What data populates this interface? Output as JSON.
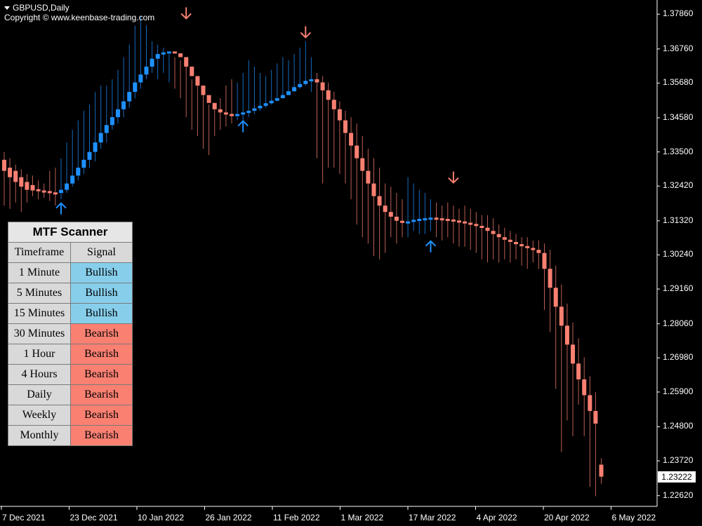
{
  "chart_header": {
    "symbol": "GBPUSD,Daily",
    "copyright": "Copyright © www.keenbase-trading.com"
  },
  "current_price": "1.23222",
  "colors": {
    "bull": "#1e90ff",
    "bear": "#fa8072",
    "bull_cell": "#87ceeb",
    "bear_cell": "#fa8072",
    "background": "#000000"
  },
  "chart_data": {
    "type": "candlestick",
    "title": "GBPUSD,Daily",
    "y_ticks": [
      "1.37860",
      "1.36760",
      "1.35680",
      "1.34580",
      "1.33500",
      "1.32420",
      "1.31320",
      "1.30240",
      "1.29160",
      "1.28060",
      "1.26980",
      "1.25900",
      "1.24800",
      "1.23720",
      "1.22620"
    ],
    "x_ticks": [
      "7 Dec 2021",
      "23 Dec 2021",
      "10 Jan 2022",
      "26 Jan 2022",
      "11 Feb 2022",
      "1 Mar 2022",
      "17 Mar 2022",
      "4 Apr 2022",
      "20 Apr 2022",
      "6 May 2022"
    ],
    "ylim": [
      1.2228,
      1.3822
    ],
    "grid": false,
    "candles": [
      {
        "h": 1.335,
        "l": 1.318,
        "b": 1.3325,
        "e": 1.329
      },
      {
        "h": 1.333,
        "l": 1.317,
        "b": 1.33,
        "e": 1.327
      },
      {
        "h": 1.331,
        "l": 1.319,
        "b": 1.329,
        "e": 1.3255
      },
      {
        "h": 1.3295,
        "l": 1.316,
        "b": 1.327,
        "e": 1.324
      },
      {
        "h": 1.328,
        "l": 1.319,
        "b": 1.3255,
        "e": 1.323
      },
      {
        "h": 1.3275,
        "l": 1.321,
        "b": 1.3245,
        "e": 1.3228
      },
      {
        "h": 1.326,
        "l": 1.32,
        "b": 1.3232,
        "e": 1.3226
      },
      {
        "h": 1.325,
        "l": 1.3205,
        "b": 1.3228,
        "e": 1.3224
      },
      {
        "h": 1.329,
        "l": 1.3195,
        "b": 1.3226,
        "e": 1.3222
      },
      {
        "h": 1.33,
        "l": 1.318,
        "b": 1.3222,
        "e": 1.3218
      },
      {
        "h": 1.333,
        "l": 1.32,
        "b": 1.322,
        "e": 1.323
      },
      {
        "h": 1.338,
        "l": 1.322,
        "b": 1.323,
        "e": 1.325
      },
      {
        "h": 1.342,
        "l": 1.324,
        "b": 1.325,
        "e": 1.3275
      },
      {
        "h": 1.345,
        "l": 1.326,
        "b": 1.3275,
        "e": 1.33
      },
      {
        "h": 1.348,
        "l": 1.328,
        "b": 1.33,
        "e": 1.3325
      },
      {
        "h": 1.35,
        "l": 1.33,
        "b": 1.3325,
        "e": 1.335
      },
      {
        "h": 1.354,
        "l": 1.332,
        "b": 1.335,
        "e": 1.338
      },
      {
        "h": 1.356,
        "l": 1.336,
        "b": 1.338,
        "e": 1.341
      },
      {
        "h": 1.356,
        "l": 1.338,
        "b": 1.341,
        "e": 1.3435
      },
      {
        "h": 1.358,
        "l": 1.342,
        "b": 1.3435,
        "e": 1.346
      },
      {
        "h": 1.361,
        "l": 1.344,
        "b": 1.346,
        "e": 1.3485
      },
      {
        "h": 1.365,
        "l": 1.346,
        "b": 1.3485,
        "e": 1.351
      },
      {
        "h": 1.369,
        "l": 1.349,
        "b": 1.351,
        "e": 1.354
      },
      {
        "h": 1.375,
        "l": 1.352,
        "b": 1.354,
        "e": 1.357
      },
      {
        "h": 1.378,
        "l": 1.355,
        "b": 1.357,
        "e": 1.3595
      },
      {
        "h": 1.375,
        "l": 1.358,
        "b": 1.3595,
        "e": 1.362
      },
      {
        "h": 1.37,
        "l": 1.36,
        "b": 1.362,
        "e": 1.3645
      },
      {
        "h": 1.369,
        "l": 1.358,
        "b": 1.3645,
        "e": 1.366
      },
      {
        "h": 1.368,
        "l": 1.36,
        "b": 1.366,
        "e": 1.3665
      },
      {
        "h": 1.366,
        "l": 1.357,
        "b": 1.3665,
        "e": 1.3668
      },
      {
        "h": 1.365,
        "l": 1.355,
        "b": 1.3668,
        "e": 1.3662
      },
      {
        "h": 1.364,
        "l": 1.352,
        "b": 1.3662,
        "e": 1.365
      },
      {
        "h": 1.362,
        "l": 1.346,
        "b": 1.365,
        "e": 1.362
      },
      {
        "h": 1.358,
        "l": 1.342,
        "b": 1.362,
        "e": 1.359
      },
      {
        "h": 1.356,
        "l": 1.34,
        "b": 1.359,
        "e": 1.356
      },
      {
        "h": 1.353,
        "l": 1.336,
        "b": 1.356,
        "e": 1.353
      },
      {
        "h": 1.35,
        "l": 1.334,
        "b": 1.353,
        "e": 1.3505
      },
      {
        "h": 1.349,
        "l": 1.34,
        "b": 1.3505,
        "e": 1.3485
      },
      {
        "h": 1.352,
        "l": 1.342,
        "b": 1.3485,
        "e": 1.3475
      },
      {
        "h": 1.356,
        "l": 1.343,
        "b": 1.3475,
        "e": 1.347
      },
      {
        "h": 1.358,
        "l": 1.344,
        "b": 1.347,
        "e": 1.3468
      },
      {
        "h": 1.357,
        "l": 1.345,
        "b": 1.3468,
        "e": 1.347
      },
      {
        "h": 1.36,
        "l": 1.344,
        "b": 1.347,
        "e": 1.3475
      },
      {
        "h": 1.364,
        "l": 1.346,
        "b": 1.3475,
        "e": 1.348
      },
      {
        "h": 1.362,
        "l": 1.347,
        "b": 1.348,
        "e": 1.3488
      },
      {
        "h": 1.36,
        "l": 1.348,
        "b": 1.3488,
        "e": 1.3496
      },
      {
        "h": 1.359,
        "l": 1.349,
        "b": 1.3496,
        "e": 1.3504
      },
      {
        "h": 1.361,
        "l": 1.35,
        "b": 1.3504,
        "e": 1.3512
      },
      {
        "h": 1.363,
        "l": 1.351,
        "b": 1.3512,
        "e": 1.352
      },
      {
        "h": 1.365,
        "l": 1.352,
        "b": 1.352,
        "e": 1.353
      },
      {
        "h": 1.364,
        "l": 1.353,
        "b": 1.353,
        "e": 1.3542
      },
      {
        "h": 1.366,
        "l": 1.354,
        "b": 1.3542,
        "e": 1.3555
      },
      {
        "h": 1.368,
        "l": 1.355,
        "b": 1.3555,
        "e": 1.3565
      },
      {
        "h": 1.37,
        "l": 1.356,
        "b": 1.3565,
        "e": 1.3575
      },
      {
        "h": 1.365,
        "l": 1.354,
        "b": 1.3575,
        "e": 1.358
      },
      {
        "h": 1.36,
        "l": 1.333,
        "b": 1.358,
        "e": 1.357
      },
      {
        "h": 1.359,
        "l": 1.325,
        "b": 1.357,
        "e": 1.3545
      },
      {
        "h": 1.357,
        "l": 1.33,
        "b": 1.3545,
        "e": 1.3515
      },
      {
        "h": 1.354,
        "l": 1.33,
        "b": 1.3515,
        "e": 1.3485
      },
      {
        "h": 1.351,
        "l": 1.328,
        "b": 1.3485,
        "e": 1.345
      },
      {
        "h": 1.348,
        "l": 1.325,
        "b": 1.345,
        "e": 1.341
      },
      {
        "h": 1.346,
        "l": 1.32,
        "b": 1.341,
        "e": 1.337
      },
      {
        "h": 1.344,
        "l": 1.312,
        "b": 1.337,
        "e": 1.333
      },
      {
        "h": 1.34,
        "l": 1.308,
        "b": 1.333,
        "e": 1.329
      },
      {
        "h": 1.336,
        "l": 1.306,
        "b": 1.329,
        "e": 1.325
      },
      {
        "h": 1.333,
        "l": 1.302,
        "b": 1.325,
        "e": 1.321
      },
      {
        "h": 1.33,
        "l": 1.301,
        "b": 1.321,
        "e": 1.318
      },
      {
        "h": 1.325,
        "l": 1.303,
        "b": 1.318,
        "e": 1.316
      },
      {
        "h": 1.324,
        "l": 1.308,
        "b": 1.316,
        "e": 1.3145
      },
      {
        "h": 1.322,
        "l": 1.306,
        "b": 1.3145,
        "e": 1.3132
      },
      {
        "h": 1.32,
        "l": 1.308,
        "b": 1.3132,
        "e": 1.3126
      },
      {
        "h": 1.327,
        "l": 1.308,
        "b": 1.3126,
        "e": 1.313
      },
      {
        "h": 1.325,
        "l": 1.31,
        "b": 1.313,
        "e": 1.3135
      },
      {
        "h": 1.323,
        "l": 1.309,
        "b": 1.3135,
        "e": 1.3138
      },
      {
        "h": 1.322,
        "l": 1.309,
        "b": 1.3138,
        "e": 1.314
      },
      {
        "h": 1.32,
        "l": 1.31,
        "b": 1.314,
        "e": 1.3142
      },
      {
        "h": 1.319,
        "l": 1.308,
        "b": 1.3142,
        "e": 1.314
      },
      {
        "h": 1.318,
        "l": 1.307,
        "b": 1.314,
        "e": 1.3138
      },
      {
        "h": 1.319,
        "l": 1.308,
        "b": 1.3138,
        "e": 1.3136
      },
      {
        "h": 1.318,
        "l": 1.306,
        "b": 1.3136,
        "e": 1.3133
      },
      {
        "h": 1.317,
        "l": 1.305,
        "b": 1.3133,
        "e": 1.313
      },
      {
        "h": 1.318,
        "l": 1.305,
        "b": 1.313,
        "e": 1.3126
      },
      {
        "h": 1.317,
        "l": 1.304,
        "b": 1.3126,
        "e": 1.3122
      },
      {
        "h": 1.316,
        "l": 1.303,
        "b": 1.3122,
        "e": 1.3116
      },
      {
        "h": 1.315,
        "l": 1.301,
        "b": 1.3116,
        "e": 1.311
      },
      {
        "h": 1.315,
        "l": 1.3,
        "b": 1.311,
        "e": 1.31
      },
      {
        "h": 1.314,
        "l": 1.301,
        "b": 1.31,
        "e": 1.309
      },
      {
        "h": 1.312,
        "l": 1.3,
        "b": 1.309,
        "e": 1.308
      },
      {
        "h": 1.311,
        "l": 1.301,
        "b": 1.308,
        "e": 1.3072
      },
      {
        "h": 1.31,
        "l": 1.3,
        "b": 1.3072,
        "e": 1.3065
      },
      {
        "h": 1.309,
        "l": 1.301,
        "b": 1.3065,
        "e": 1.3058
      },
      {
        "h": 1.308,
        "l": 1.299,
        "b": 1.3058,
        "e": 1.3052
      },
      {
        "h": 1.308,
        "l": 1.298,
        "b": 1.3052,
        "e": 1.3046
      },
      {
        "h": 1.307,
        "l": 1.3,
        "b": 1.3046,
        "e": 1.304
      },
      {
        "h": 1.307,
        "l": 1.298,
        "b": 1.304,
        "e": 1.303
      },
      {
        "h": 1.306,
        "l": 1.285,
        "b": 1.303,
        "e": 1.298
      },
      {
        "h": 1.304,
        "l": 1.278,
        "b": 1.298,
        "e": 1.292
      },
      {
        "h": 1.299,
        "l": 1.26,
        "b": 1.292,
        "e": 1.286
      },
      {
        "h": 1.293,
        "l": 1.24,
        "b": 1.286,
        "e": 1.28
      },
      {
        "h": 1.287,
        "l": 1.25,
        "b": 1.28,
        "e": 1.274
      },
      {
        "h": 1.281,
        "l": 1.245,
        "b": 1.274,
        "e": 1.268
      },
      {
        "h": 1.276,
        "l": 1.255,
        "b": 1.268,
        "e": 1.263
      },
      {
        "h": 1.27,
        "l": 1.245,
        "b": 1.263,
        "e": 1.258
      },
      {
        "h": 1.264,
        "l": 1.229,
        "b": 1.258,
        "e": 1.253
      },
      {
        "h": 1.259,
        "l": 1.226,
        "b": 1.253,
        "e": 1.249
      },
      {
        "h": 1.238,
        "l": 1.23,
        "b": 1.236,
        "e": 1.2322
      }
    ],
    "signal_arrows": [
      {
        "candle": 10,
        "dir": "up",
        "price": 1.317
      },
      {
        "candle": 32,
        "dir": "down",
        "price": 1.379
      },
      {
        "candle": 42,
        "dir": "up",
        "price": 1.343
      },
      {
        "candle": 53,
        "dir": "down",
        "price": 1.373
      },
      {
        "candle": 75,
        "dir": "up",
        "price": 1.305
      },
      {
        "candle": 79,
        "dir": "down",
        "price": 1.327
      }
    ]
  },
  "scanner": {
    "title": "MTF Scanner",
    "col_timeframe": "Timeframe",
    "col_signal": "Signal",
    "rows": [
      {
        "tf": "1 Minute",
        "signal": "Bullish",
        "state": "bull"
      },
      {
        "tf": "5 Minutes",
        "signal": "Bullish",
        "state": "bull"
      },
      {
        "tf": "15 Minutes",
        "signal": "Bullish",
        "state": "bull"
      },
      {
        "tf": "30 Minutes",
        "signal": "Bearish",
        "state": "bear"
      },
      {
        "tf": "1 Hour",
        "signal": "Bearish",
        "state": "bear"
      },
      {
        "tf": "4 Hours",
        "signal": "Bearish",
        "state": "bear"
      },
      {
        "tf": "Daily",
        "signal": "Bearish",
        "state": "bear"
      },
      {
        "tf": "Weekly",
        "signal": "Bearish",
        "state": "bear"
      },
      {
        "tf": "Monthly",
        "signal": "Bearish",
        "state": "bear"
      }
    ]
  }
}
